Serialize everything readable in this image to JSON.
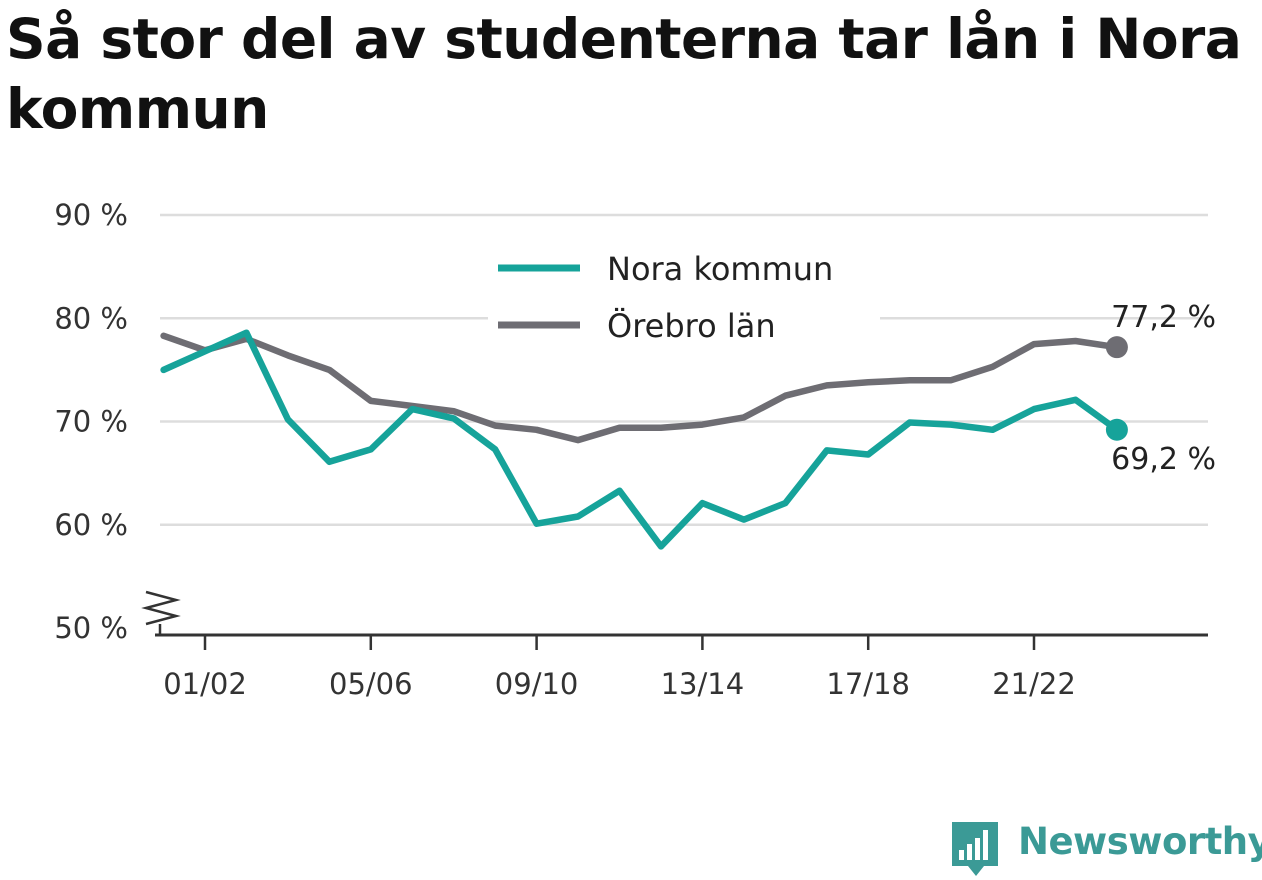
{
  "title": "Så stor del av studenterna tar lån i Nora kommun",
  "brand": "Newsworthy",
  "colors": {
    "nora": "#16a39a",
    "lan": "#6e6d73",
    "grid": "#dddddd",
    "axis": "#333333",
    "brand": "#3b9a96"
  },
  "chart_data": {
    "type": "line",
    "x": [
      "00/01",
      "01/02",
      "02/03",
      "03/04",
      "04/05",
      "05/06",
      "06/07",
      "07/08",
      "08/09",
      "09/10",
      "10/11",
      "11/12",
      "12/13",
      "13/14",
      "14/15",
      "15/16",
      "16/17",
      "17/18",
      "18/19",
      "19/20",
      "20/21",
      "21/22",
      "22/23",
      "23/24"
    ],
    "x_tick_labels": [
      "01/02",
      "05/06",
      "09/10",
      "13/14",
      "17/18",
      "21/22"
    ],
    "y_ticks": [
      50,
      60,
      70,
      80,
      90
    ],
    "y_tick_labels": [
      "50 %",
      "60 %",
      "70 %",
      "80 %",
      "90 %"
    ],
    "ylim": [
      50,
      90
    ],
    "y_axis_break": true,
    "grid": true,
    "legend_position": "top-center",
    "series": [
      {
        "name": "Nora kommun",
        "color": "#16a39a",
        "values": [
          75.0,
          76.8,
          78.6,
          70.2,
          66.1,
          67.3,
          71.2,
          70.3,
          67.3,
          60.1,
          60.8,
          63.3,
          57.9,
          62.1,
          60.5,
          62.1,
          67.2,
          66.8,
          69.9,
          69.7,
          69.2,
          71.2,
          72.1,
          69.2
        ],
        "end_label": "69,2 %"
      },
      {
        "name": "Örebro län",
        "color": "#6e6d73",
        "values": [
          78.3,
          76.9,
          78.0,
          76.4,
          75.0,
          72.0,
          71.5,
          71.0,
          69.6,
          69.2,
          68.2,
          69.4,
          69.4,
          69.7,
          70.4,
          72.5,
          73.5,
          73.8,
          74.0,
          74.0,
          75.3,
          77.5,
          77.8,
          77.2
        ],
        "end_label": "77,2 %"
      }
    ]
  }
}
